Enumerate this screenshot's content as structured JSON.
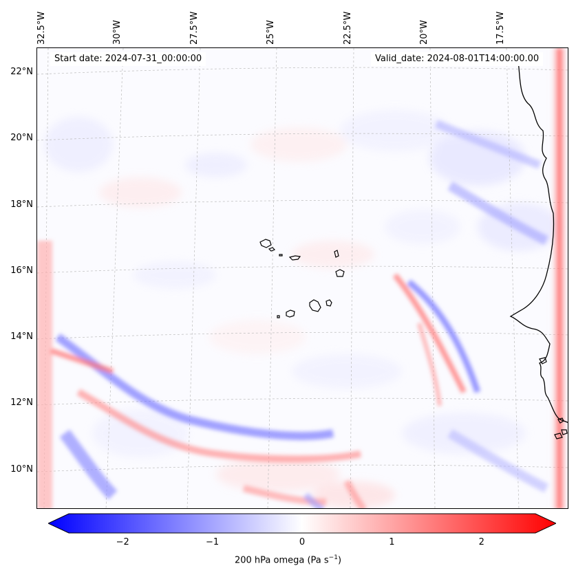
{
  "map": {
    "header_left": "Start date: 2024-07-31_00:00:00",
    "header_right": "Valid_date: 2024-08-01T14:00:00.00",
    "longitude_labels": [
      "32.5°W",
      "30°W",
      "27.5°W",
      "25°W",
      "22.5°W",
      "20°W",
      "17.5°W"
    ],
    "latitude_labels": [
      "22°N",
      "20°N",
      "18°N",
      "16°N",
      "14°N",
      "12°N",
      "10°N"
    ],
    "field_colors": {
      "negative": "#0000ff",
      "zero": "#ffffff",
      "positive": "#ff0000",
      "coast": "#000000",
      "grid": "#bbbbbb"
    }
  },
  "colorbar": {
    "label": "200 hPa omega (Pa s",
    "label_superscript": "−1",
    "label_suffix": ")",
    "range": [
      -2.6,
      2.6
    ],
    "ticks": [
      {
        "value": -2,
        "text": "−2"
      },
      {
        "value": -1,
        "text": "−1"
      },
      {
        "value": 0,
        "text": "0"
      },
      {
        "value": 1,
        "text": "1"
      },
      {
        "value": 2,
        "text": "2"
      }
    ]
  }
}
